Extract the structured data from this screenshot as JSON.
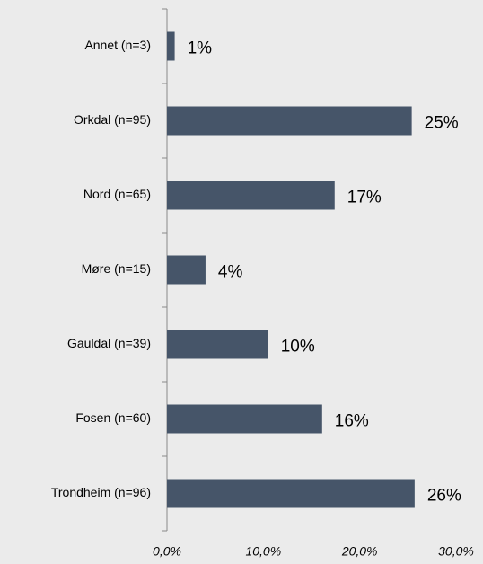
{
  "chart_data": {
    "type": "bar",
    "orientation": "horizontal",
    "categories": [
      "Annet (n=3)",
      "Orkdal (n=95)",
      "Nord (n=65)",
      "Møre (n=15)",
      "Gauldal (n=39)",
      "Fosen (n=60)",
      "Trondheim (n=96)"
    ],
    "values": [
      0.8,
      25.4,
      17.4,
      4.0,
      10.5,
      16.1,
      25.7
    ],
    "value_labels": [
      "1%",
      "25%",
      "17%",
      "4%",
      "10%",
      "16%",
      "26%"
    ],
    "color": "#465569",
    "xlim": [
      0,
      30
    ],
    "xticks": [
      {
        "value": 0,
        "label": "0,0%"
      },
      {
        "value": 10,
        "label": "10,0%"
      },
      {
        "value": 20,
        "label": "20,0%"
      },
      {
        "value": 30,
        "label": "30,0%"
      }
    ],
    "grid": false
  }
}
